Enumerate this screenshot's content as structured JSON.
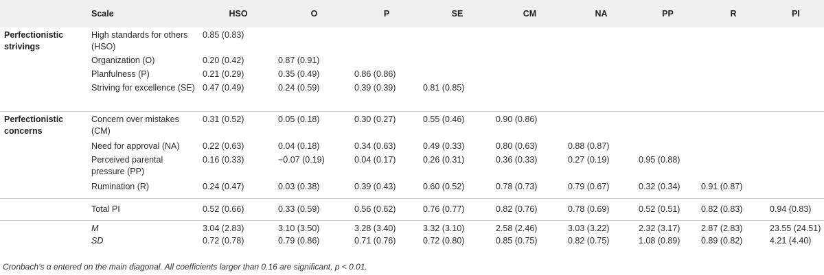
{
  "header": {
    "group": "",
    "scale": "Scale",
    "cols": [
      "HSO",
      "O",
      "P",
      "SE",
      "CM",
      "NA",
      "PP",
      "R",
      "PI"
    ]
  },
  "groups": {
    "strivings": "Perfectionistic strivings",
    "concerns": "Perfectionistic concerns"
  },
  "rows": [
    {
      "scale": "High standards for others (HSO)",
      "values": [
        "0.85 (0.83)",
        "",
        "",
        "",
        "",
        "",
        "",
        "",
        ""
      ]
    },
    {
      "scale": "Organization (O)",
      "values": [
        "0.20 (0.42)",
        "0.87 (0.91)",
        "",
        "",
        "",
        "",
        "",
        "",
        ""
      ]
    },
    {
      "scale": "Planfulness (P)",
      "values": [
        "0.21 (0.29)",
        "0.35 (0.49)",
        "0.86 (0.86)",
        "",
        "",
        "",
        "",
        "",
        ""
      ]
    },
    {
      "scale": "Striving for excellence (SE)",
      "values": [
        "0.47 (0.49)",
        "0.24 (0.59)",
        "0.39 (0.39)",
        "0.81 (0.85)",
        "",
        "",
        "",
        "",
        ""
      ]
    },
    {
      "scale": "Concern over mistakes (CM)",
      "values": [
        "0.31 (0.52)",
        "0.05 (0.18)",
        "0.30 (0.27)",
        "0.55 (0.46)",
        "0.90 (0.86)",
        "",
        "",
        "",
        ""
      ]
    },
    {
      "scale": "Need for approval (NA)",
      "values": [
        "0.22 (0.63)",
        "0.04 (0.18)",
        "0.34 (0.63)",
        "0.49 (0.33)",
        "0.80 (0.63)",
        "0.88 (0.87)",
        "",
        "",
        ""
      ]
    },
    {
      "scale": "Perceived parental pressure (PP)",
      "values": [
        "0.16 (0.33)",
        "−0.07 (0.19)",
        "0.04 (0.17)",
        "0.26 (0.31)",
        "0.36 (0.33)",
        "0.27 (0.19)",
        "0.95 (0.88)",
        "",
        ""
      ]
    },
    {
      "scale": "Rumination (R)",
      "values": [
        "0.24 (0.47)",
        "0.03 (0.38)",
        "0.39 (0.43)",
        "0.60 (0.52)",
        "0.78 (0.73)",
        "0.79 (0.67)",
        "0.32 (0.34)",
        "0.91 (0.87)",
        ""
      ]
    },
    {
      "scale": "Total PI",
      "values": [
        "0.52 (0.66)",
        "0.33 (0.59)",
        "0.56 (0.62)",
        "0.76 (0.77)",
        "0.82 (0.76)",
        "0.78 (0.69)",
        "0.52 (0.51)",
        "0.82 (0.83)",
        "0.94 (0.83)"
      ]
    },
    {
      "scale": "M",
      "values": [
        "3.04 (2.83)",
        "3.10 (3.50)",
        "3.28 (3.40)",
        "3.32 (3.10)",
        "2.58 (2.46)",
        "3.03 (3.22)",
        "2.32 (3.17)",
        "2.87 (2.83)",
        "23.55 (24.51)"
      ]
    },
    {
      "scale": "SD",
      "values": [
        "0.72 (0.78)",
        "0.79 (0.86)",
        "0.71 (0.76)",
        "0.72 (0.80)",
        "0.85 (0.75)",
        "0.82 (0.75)",
        "1.08 (0.89)",
        "0.89 (0.82)",
        "4.21 (4.40)"
      ]
    }
  ],
  "note": "Cronbach’s α entered on the main diagonal. All coefficients larger than 0.16 are significant, p < 0.01."
}
